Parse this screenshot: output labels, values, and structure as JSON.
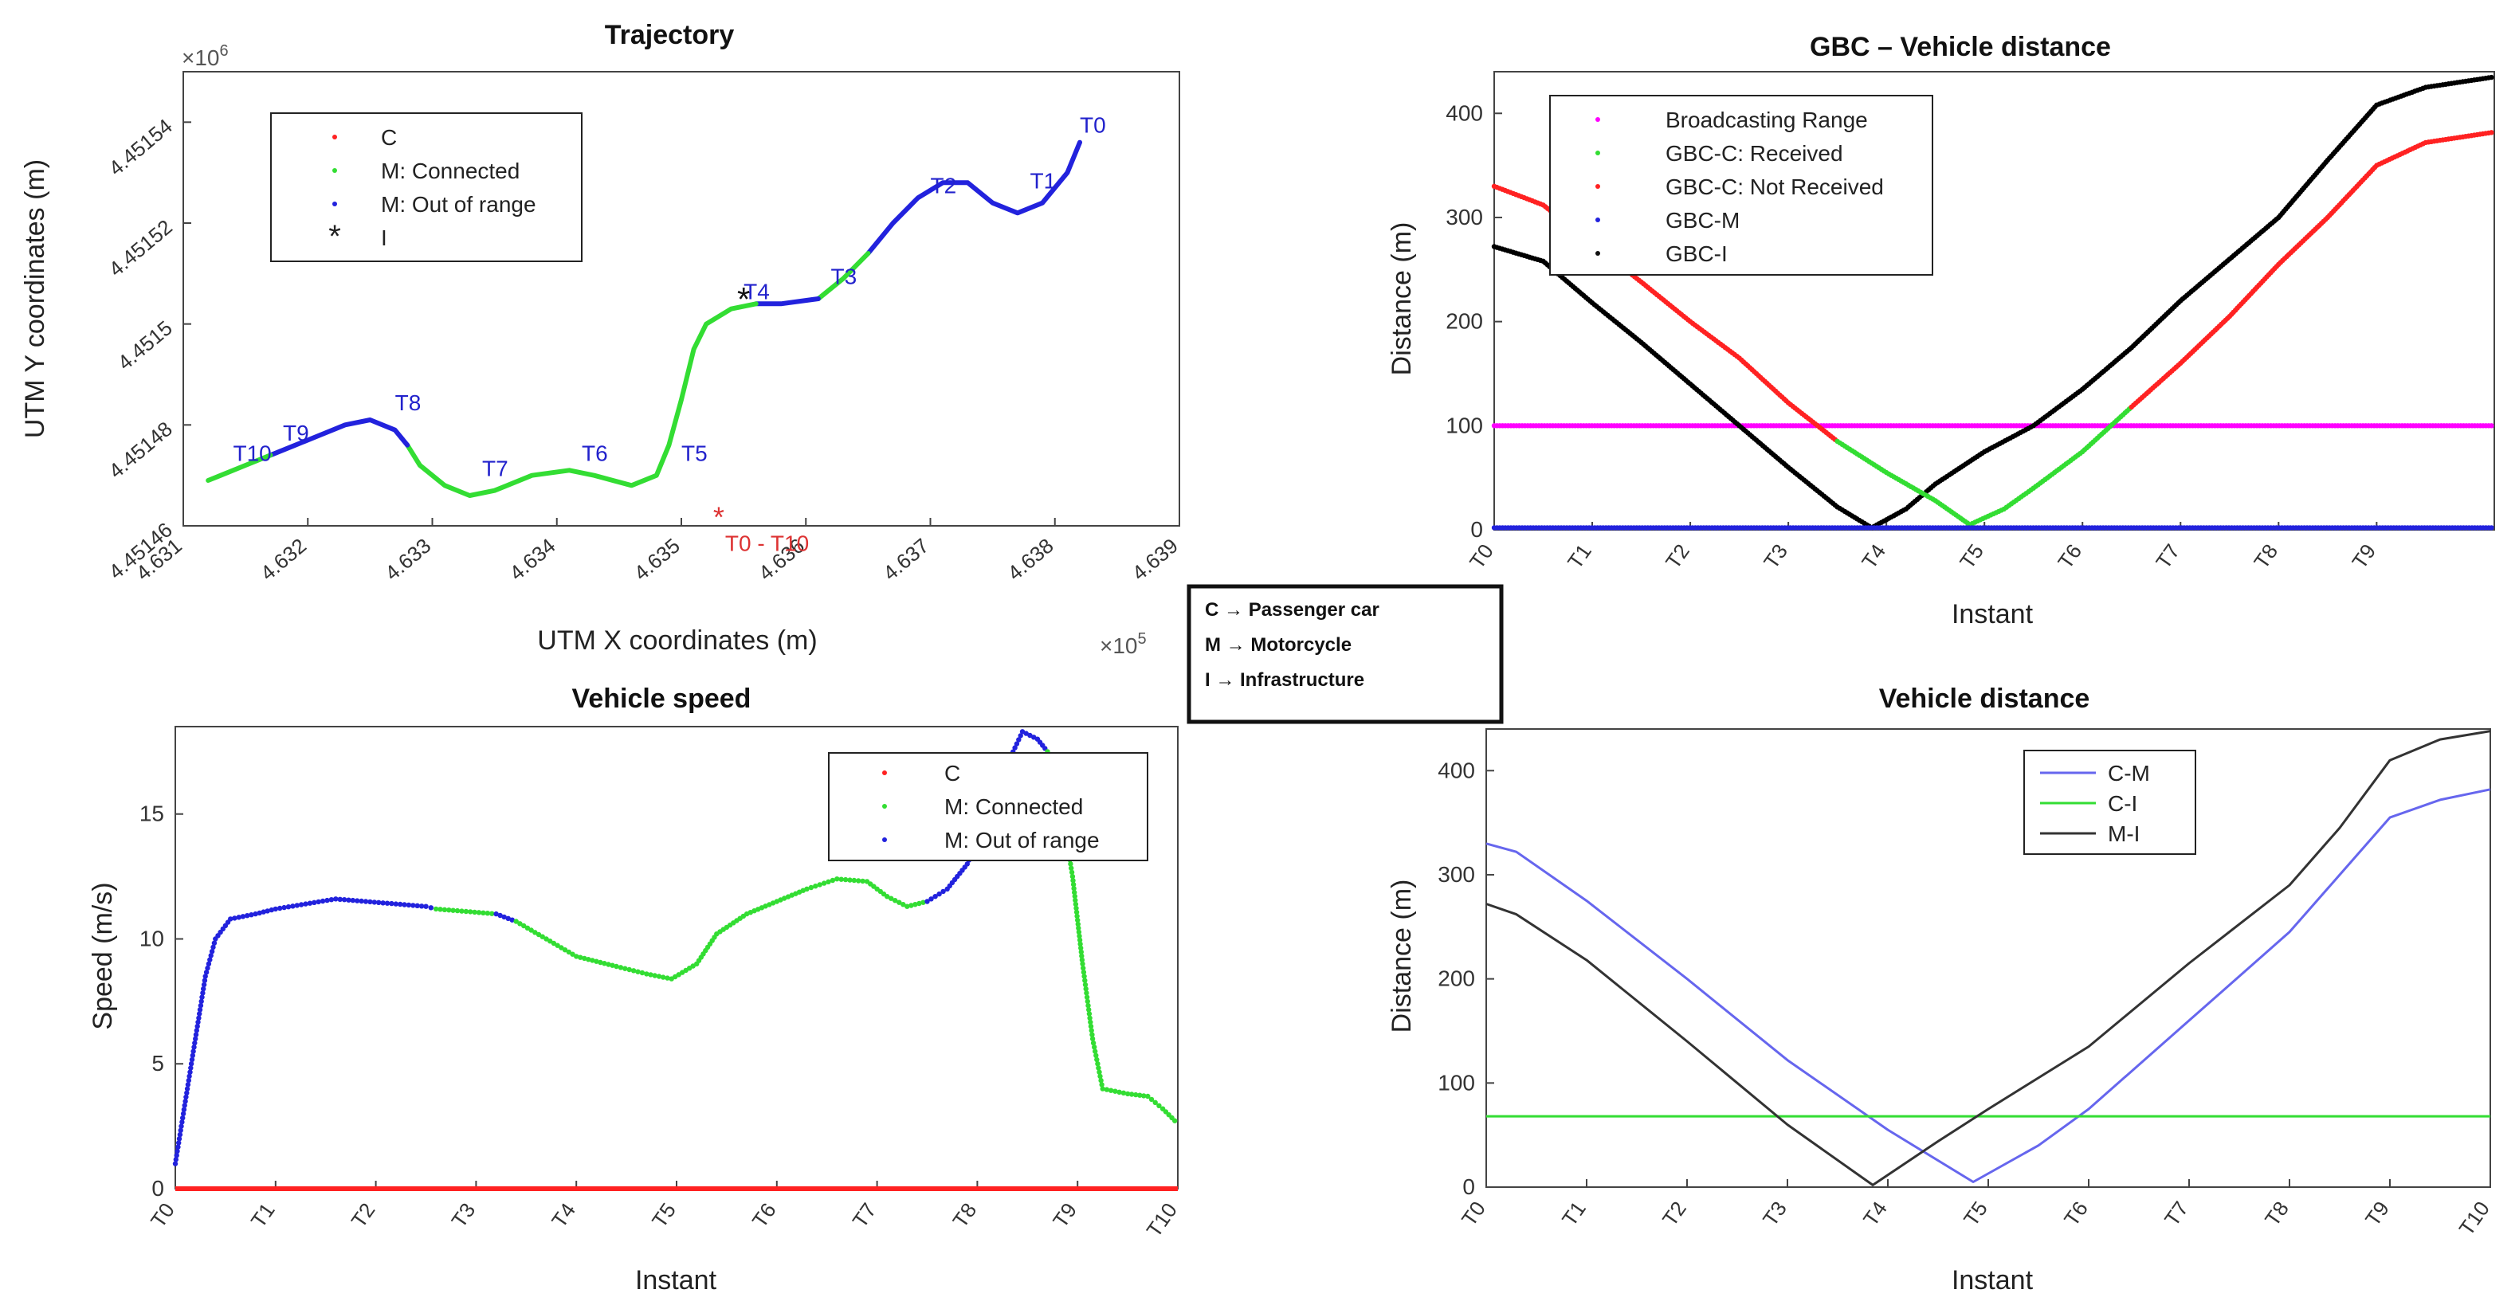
{
  "charts": {
    "trajectory": {
      "title": "Trajectory",
      "xlabel": "UTM X coordinates (m)",
      "ylabel": "UTM Y coordinates (m)",
      "x_exp": "×10",
      "x_exp_power": "5",
      "y_exp": "×10",
      "y_exp_power": "6",
      "x_ticks": [
        "4.631",
        "4.632",
        "4.633",
        "4.634",
        "4.635",
        "4.636",
        "4.637",
        "4.638",
        "4.639"
      ],
      "y_ticks": [
        "4.45146",
        "4.45148",
        "4.4515",
        "4.45152",
        "4.45154"
      ],
      "legend": [
        "C",
        "M: Connected",
        "M: Out of range",
        "I"
      ],
      "points": [
        {
          "label": "T0",
          "x": 4.6382,
          "y": 4.451536,
          "color": "#2222cc"
        },
        {
          "label": "T1",
          "x": 4.6378,
          "y": 4.451525,
          "color": "#2222cc"
        },
        {
          "label": "T2",
          "x": 4.637,
          "y": 4.451524,
          "color": "#2222cc"
        },
        {
          "label": "T3",
          "x": 4.6362,
          "y": 4.451506,
          "color": "#2222cc"
        },
        {
          "label": "T4",
          "x": 4.6355,
          "y": 4.451503,
          "color": "#2222cc"
        },
        {
          "label": "T5",
          "x": 4.635,
          "y": 4.451471,
          "color": "#2222cc"
        },
        {
          "label": "T6",
          "x": 4.6342,
          "y": 4.451471,
          "color": "#2222cc"
        },
        {
          "label": "T7",
          "x": 4.6334,
          "y": 4.451468,
          "color": "#2222cc"
        },
        {
          "label": "T8",
          "x": 4.6327,
          "y": 4.451481,
          "color": "#2222cc"
        },
        {
          "label": "T9",
          "x": 4.6318,
          "y": 4.451475,
          "color": "#2222cc"
        },
        {
          "label": "T10",
          "x": 4.6314,
          "y": 4.451471,
          "color": "#2222cc"
        },
        {
          "label": "T0 - T10",
          "x": 4.6353,
          "y": 4.451462,
          "color": "#dd3333"
        }
      ],
      "segments": [
        {
          "color": "#2222dd",
          "pts": [
            [
              4.6382,
              4.451536
            ],
            [
              4.6381,
              4.45153
            ],
            [
              4.6379,
              4.451524
            ],
            [
              4.6377,
              4.451522
            ],
            [
              4.6375,
              4.451524
            ],
            [
              4.6373,
              4.451528
            ],
            [
              4.6371,
              4.451528
            ],
            [
              4.6369,
              4.451525
            ],
            [
              4.6367,
              4.45152
            ],
            [
              4.6365,
              4.451514
            ]
          ]
        },
        {
          "color": "#33dd33",
          "pts": [
            [
              4.6365,
              4.451514
            ],
            [
              4.6363,
              4.451509
            ],
            [
              4.6361,
              4.451505
            ]
          ]
        },
        {
          "color": "#2222dd",
          "pts": [
            [
              4.6361,
              4.451505
            ],
            [
              4.6358,
              4.451504
            ],
            [
              4.6356,
              4.451504
            ]
          ]
        },
        {
          "color": "#33dd33",
          "pts": [
            [
              4.6356,
              4.451504
            ],
            [
              4.6354,
              4.451503
            ],
            [
              4.6352,
              4.4515
            ],
            [
              4.6351,
              4.451495
            ],
            [
              4.635,
              4.451485
            ],
            [
              4.6349,
              4.451476
            ],
            [
              4.6348,
              4.45147
            ],
            [
              4.6346,
              4.451468
            ],
            [
              4.6343,
              4.45147
            ],
            [
              4.6341,
              4.451471
            ],
            [
              4.6338,
              4.45147
            ],
            [
              4.6335,
              4.451467
            ],
            [
              4.6333,
              4.451466
            ],
            [
              4.6331,
              4.451468
            ],
            [
              4.6329,
              4.451472
            ],
            [
              4.6328,
              4.451476
            ]
          ]
        },
        {
          "color": "#2222dd",
          "pts": [
            [
              4.6328,
              4.451476
            ],
            [
              4.6327,
              4.451479
            ],
            [
              4.6325,
              4.451481
            ],
            [
              4.6323,
              4.45148
            ],
            [
              4.6321,
              4.451478
            ],
            [
              4.6319,
              4.451476
            ],
            [
              4.6317,
              4.451474
            ]
          ]
        },
        {
          "color": "#33dd33",
          "pts": [
            [
              4.6317,
              4.451474
            ],
            [
              4.6315,
              4.451472
            ],
            [
              4.6313,
              4.45147
            ],
            [
              4.6312,
              4.451469
            ]
          ]
        }
      ],
      "infrastructure": {
        "x": 4.6355,
        "y": 4.451505
      }
    },
    "gbc": {
      "title": "GBC – Vehicle distance",
      "xlabel": "Instant",
      "ylabel": "Distance (m)",
      "categories": [
        "T0",
        "T1",
        "T2",
        "T3",
        "T4",
        "T5",
        "T6",
        "T7",
        "T8",
        "T9"
      ],
      "y_ticks": [
        "0",
        "100",
        "200",
        "300",
        "400"
      ],
      "ylim": [
        0,
        440
      ],
      "legend": [
        "Broadcasting Range",
        "GBC-C: Received",
        "GBC-C: Not Received",
        "GBC-M",
        "GBC-I"
      ],
      "series": [
        {
          "name": "Broadcasting Range",
          "color": "#ff00ff",
          "values": [
            [
              0,
              100
            ],
            [
              10.2,
              100
            ]
          ]
        },
        {
          "name": "GBC-I",
          "color": "#000000",
          "values": [
            [
              0,
              272
            ],
            [
              0.5,
              258
            ],
            [
              1,
              218
            ],
            [
              1.5,
              180
            ],
            [
              2,
              140
            ],
            [
              2.5,
              100
            ],
            [
              3,
              60
            ],
            [
              3.5,
              22
            ],
            [
              3.85,
              2
            ],
            [
              4.2,
              20
            ],
            [
              4.5,
              44
            ],
            [
              5,
              75
            ],
            [
              5.5,
              100
            ],
            [
              6,
              135
            ],
            [
              6.5,
              175
            ],
            [
              7,
              220
            ],
            [
              7.5,
              260
            ],
            [
              8,
              300
            ],
            [
              8.5,
              355
            ],
            [
              9,
              408
            ],
            [
              9.5,
              425
            ],
            [
              10.2,
              435
            ]
          ]
        },
        {
          "name": "GBC-C",
          "color": "#ff2222",
          "values": [
            [
              0,
              330
            ],
            [
              0.5,
              312
            ],
            [
              1,
              275
            ],
            [
              1.5,
              238
            ],
            [
              2,
              200
            ],
            [
              2.5,
              165
            ],
            [
              3,
              122
            ],
            [
              3.5,
              85
            ],
            [
              4,
              55
            ],
            [
              4.5,
              28
            ],
            [
              4.85,
              5
            ],
            [
              5.2,
              20
            ],
            [
              5.5,
              40
            ],
            [
              6,
              75
            ],
            [
              6.5,
              118
            ],
            [
              7,
              160
            ],
            [
              7.5,
              205
            ],
            [
              8,
              255
            ],
            [
              8.5,
              300
            ],
            [
              9,
              350
            ],
            [
              9.5,
              372
            ],
            [
              10.2,
              382
            ]
          ]
        },
        {
          "name": "GBC-M",
          "color": "#2222dd",
          "values": [
            [
              0,
              2
            ],
            [
              10.2,
              2
            ]
          ]
        }
      ],
      "received_range": [
        3.3,
        6.4
      ]
    },
    "speed": {
      "title": "Vehicle speed",
      "xlabel": "Instant",
      "ylabel": "Speed (m/s)",
      "categories": [
        "T0",
        "T1",
        "T2",
        "T3",
        "T4",
        "T5",
        "T6",
        "T7",
        "T8",
        "T9",
        "T10"
      ],
      "y_ticks": [
        "0",
        "5",
        "10",
        "15"
      ],
      "ylim": [
        0,
        18.5
      ],
      "legend": [
        "C",
        "M: Connected",
        "M:  Out of range"
      ],
      "segments": [
        {
          "color": "#2222dd",
          "pts": [
            [
              0,
              1
            ],
            [
              0.1,
              3.5
            ],
            [
              0.2,
              6
            ],
            [
              0.3,
              8.5
            ],
            [
              0.4,
              10
            ],
            [
              0.55,
              10.8
            ],
            [
              0.8,
              11
            ],
            [
              1.0,
              11.2
            ],
            [
              1.3,
              11.4
            ],
            [
              1.6,
              11.6
            ],
            [
              1.9,
              11.5
            ],
            [
              2.2,
              11.4
            ],
            [
              2.5,
              11.3
            ],
            [
              2.6,
              11.2
            ]
          ]
        },
        {
          "color": "#33dd33",
          "pts": [
            [
              2.6,
              11.2
            ],
            [
              2.9,
              11.1
            ],
            [
              3.2,
              11.0
            ]
          ]
        },
        {
          "color": "#2222dd",
          "pts": [
            [
              3.2,
              11.0
            ],
            [
              3.4,
              10.7
            ]
          ]
        },
        {
          "color": "#33dd33",
          "pts": [
            [
              3.4,
              10.7
            ],
            [
              3.7,
              10
            ],
            [
              4.0,
              9.3
            ],
            [
              4.4,
              8.9
            ],
            [
              4.7,
              8.6
            ],
            [
              4.95,
              8.4
            ],
            [
              5.2,
              9
            ],
            [
              5.4,
              10.2
            ],
            [
              5.7,
              11
            ],
            [
              6.0,
              11.5
            ],
            [
              6.3,
              12
            ],
            [
              6.6,
              12.4
            ],
            [
              6.9,
              12.3
            ],
            [
              7.1,
              11.7
            ],
            [
              7.3,
              11.3
            ],
            [
              7.5,
              11.5
            ]
          ]
        },
        {
          "color": "#2222dd",
          "pts": [
            [
              7.5,
              11.5
            ],
            [
              7.7,
              12
            ],
            [
              7.9,
              13
            ],
            [
              8.1,
              15
            ],
            [
              8.3,
              17
            ],
            [
              8.45,
              18.3
            ],
            [
              8.6,
              18
            ],
            [
              8.7,
              17.5
            ]
          ]
        },
        {
          "color": "#33dd33",
          "pts": [
            [
              8.7,
              17.5
            ],
            [
              8.85,
              15
            ],
            [
              8.95,
              12.5
            ],
            [
              9.05,
              9
            ],
            [
              9.15,
              6
            ],
            [
              9.25,
              4
            ],
            [
              9.5,
              3.8
            ],
            [
              9.7,
              3.7
            ],
            [
              9.85,
              3.2
            ],
            [
              10,
              2.6
            ]
          ]
        }
      ]
    },
    "distance": {
      "title": "Vehicle distance",
      "xlabel": "Instant",
      "ylabel": "Distance (m)",
      "categories": [
        "T0",
        "T1",
        "T2",
        "T3",
        "T4",
        "T5",
        "T6",
        "T7",
        "T8",
        "T9",
        "T10"
      ],
      "y_ticks": [
        "0",
        "100",
        "200",
        "300",
        "400"
      ],
      "ylim": [
        0,
        440
      ],
      "legend": [
        "C-M",
        "C-I",
        "M-I"
      ],
      "series": [
        {
          "name": "C-M",
          "color": "#6666ee",
          "values": [
            [
              0,
              330
            ],
            [
              0.3,
              322
            ],
            [
              1,
              275
            ],
            [
              2,
              200
            ],
            [
              3,
              122
            ],
            [
              4,
              55
            ],
            [
              4.85,
              5
            ],
            [
              5.5,
              40
            ],
            [
              6,
              75
            ],
            [
              7,
              160
            ],
            [
              8,
              245
            ],
            [
              8.5,
              300
            ],
            [
              9,
              355
            ],
            [
              9.5,
              372
            ],
            [
              10,
              382
            ]
          ]
        },
        {
          "name": "C-I",
          "color": "#33dd33",
          "values": [
            [
              0,
              68
            ],
            [
              10,
              68
            ]
          ]
        },
        {
          "name": "M-I",
          "color": "#333333",
          "values": [
            [
              0,
              272
            ],
            [
              0.3,
              262
            ],
            [
              1,
              218
            ],
            [
              2,
              140
            ],
            [
              3,
              60
            ],
            [
              3.85,
              2
            ],
            [
              4.5,
              44
            ],
            [
              5,
              75
            ],
            [
              6,
              135
            ],
            [
              7,
              215
            ],
            [
              8,
              290
            ],
            [
              8.5,
              345
            ],
            [
              9,
              410
            ],
            [
              9.5,
              430
            ],
            [
              10,
              438
            ]
          ]
        }
      ]
    }
  },
  "legend_box": {
    "items": [
      {
        "abbr": "C",
        "arrow": "→",
        "meaning": "Passenger car"
      },
      {
        "abbr": "M",
        "arrow": "→",
        "meaning": "Motorcycle"
      },
      {
        "abbr": "I",
        "arrow": "→",
        "meaning": "Infrastructure"
      }
    ]
  }
}
